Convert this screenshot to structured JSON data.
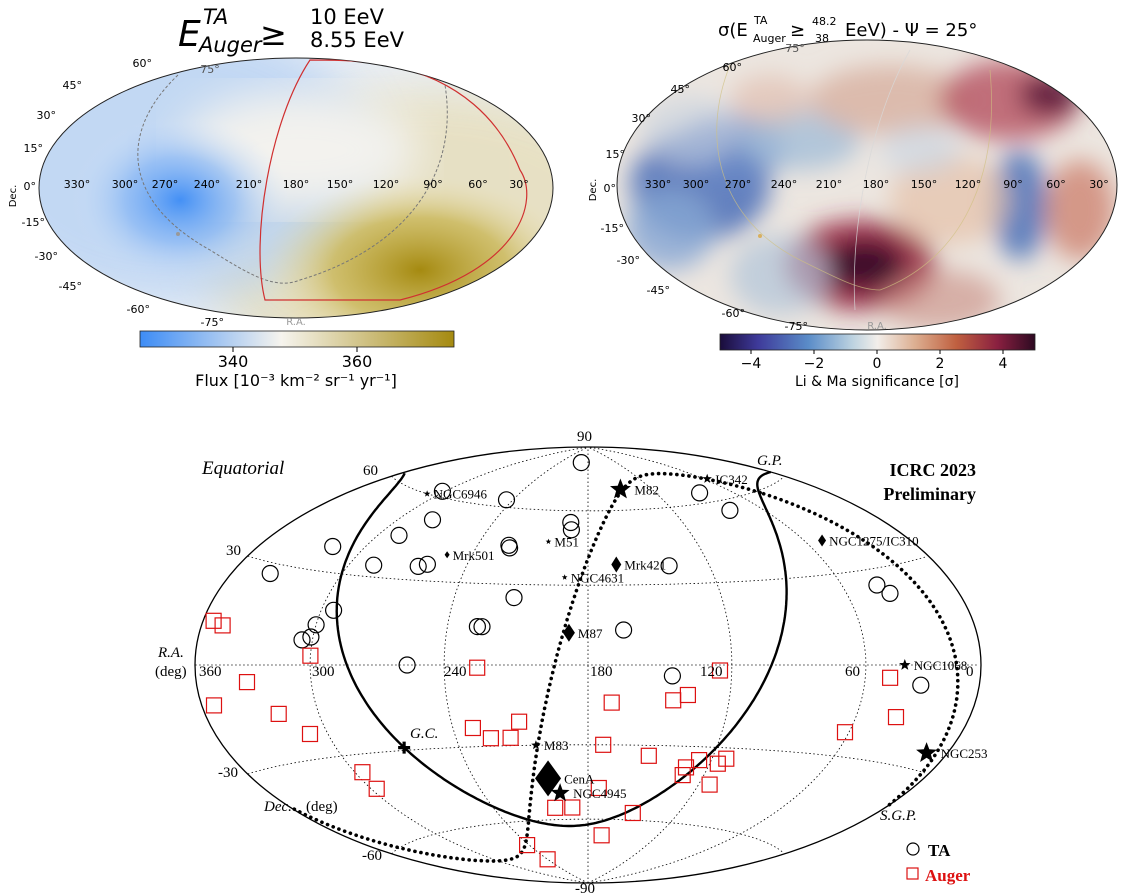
{
  "panel_top_left": {
    "title_main": "E",
    "title_sup": "TA",
    "title_sub": "Auger",
    "title_ge": "≥",
    "title_num": "10 EeV",
    "title_den": "8.55 EeV",
    "dec_axis_label": "Dec.",
    "ra_axis_label": "R.A.",
    "colorbar_label": "Flux [10⁻³ km⁻² sr⁻¹ yr⁻¹]",
    "colorbar_ticks": [
      "340",
      "360"
    ],
    "colors": {
      "low": "#3d8cf5",
      "mid": "#f6f4ee",
      "high": "#a58a10",
      "galactic_plane": "#d03030",
      "supergalactic": "#777777"
    }
  },
  "panel_top_right": {
    "title_pre": "σ(E",
    "title_sup": "TA",
    "title_sub": "Auger",
    "title_ge": "≥",
    "title_num": "48.2",
    "title_den": "38",
    "title_post": "EeV) - Ψ = 25°",
    "dec_axis_label": "Dec.",
    "ra_axis_label": "R.A.",
    "colorbar_label": "Li & Ma significance [σ]",
    "colorbar_ticks": [
      "−4",
      "−2",
      "0",
      "2",
      "4"
    ],
    "colors": {
      "neg": "#1d3a8a",
      "zero": "#f2eeea",
      "pos": "#3d0a2e"
    }
  },
  "sky_axis_labels": {
    "dec_ticks": [
      "75°",
      "60°",
      "45°",
      "30°",
      "15°",
      "0°",
      "-15°",
      "-30°",
      "-45°",
      "-60°",
      "-75°"
    ],
    "ra_ticks": [
      "330°",
      "300°",
      "270°",
      "240°",
      "210°",
      "180°",
      "150°",
      "120°",
      "90°",
      "60°",
      "30°"
    ]
  },
  "panel_bottom": {
    "label_equatorial": "Equatorial",
    "label_icrc": "ICRC 2023",
    "label_preliminary": "Preliminary",
    "label_gp": "G.P.",
    "label_sgp": "S.G.P.",
    "label_gc": "G.C.",
    "label_ra": "R.A.",
    "label_ra_unit": "(deg)",
    "label_dec": "Dec.",
    "label_dec_unit": "(deg)",
    "dec_ticks": [
      "90",
      "60",
      "30",
      "-30",
      "-60",
      "-90"
    ],
    "ra_ticks": [
      "360",
      "300",
      "240",
      "180",
      "120",
      "60",
      "0"
    ],
    "legend_ta": "TA",
    "legend_auger": "Auger",
    "colors": {
      "ta": "#000000",
      "auger": "#dd1111"
    }
  },
  "chart_data": [
    {
      "type": "heatmap",
      "projection": "mollweide-equatorial",
      "colorbar_range_approx": [
        325,
        380
      ],
      "description_values": "smooth flux dipole map"
    },
    {
      "type": "heatmap",
      "projection": "mollweide-equatorial",
      "colorbar_range": [
        -5,
        5
      ],
      "colorbar_ticks": [
        -4,
        -2,
        0,
        2,
        4
      ]
    },
    {
      "type": "scatter",
      "projection": "hammer-aitoff-equatorial",
      "series": [
        {
          "name": "TA",
          "marker": "circle",
          "points": [
            [
              195,
              82
            ],
            [
              245,
              63
            ],
            [
              302,
              62
            ],
            [
              279,
              52
            ],
            [
              191,
              55
            ],
            [
              190,
              52
            ],
            [
              223,
              45
            ],
            [
              222,
              44
            ],
            [
              288,
              45
            ],
            [
              318,
              38
            ],
            [
              264,
              35
            ],
            [
              260,
              36
            ],
            [
              287,
              34
            ],
            [
              140,
              37
            ],
            [
              82,
              56
            ],
            [
              85,
              64
            ],
            [
              338,
              27
            ],
            [
              213,
              25
            ],
            [
              294,
              18
            ],
            [
              227,
              14
            ],
            [
              225,
              14
            ],
            [
              300,
              13
            ],
            [
              301,
              9
            ],
            [
              305,
              8
            ],
            [
              165,
              13
            ],
            [
              256,
              0
            ],
            [
              42,
              25
            ],
            [
              38,
              22
            ],
            [
              32,
              -6
            ],
            [
              145,
              -4
            ]
          ]
        },
        {
          "name": "Auger",
          "marker": "square",
          "points": [
            [
              354,
              12
            ],
            [
              348,
              11
            ],
            [
              300,
              3
            ],
            [
              226,
              -1
            ],
            [
              125,
              -2
            ],
            [
              332,
              -5
            ],
            [
              320,
              -15
            ],
            [
              353,
              -11
            ],
            [
              309,
              -22
            ],
            [
              210,
              -21
            ],
            [
              170,
              -14
            ],
            [
              138,
              -11
            ],
            [
              144,
              -13
            ],
            [
              231,
              -23
            ],
            [
              224,
              -27
            ],
            [
              215,
              -27
            ],
            [
              173,
              -30
            ],
            [
              296,
              -36
            ],
            [
              297,
              -42
            ],
            [
              151,
              -34
            ],
            [
              126,
              -35
            ],
            [
              131,
              -38
            ],
            [
              131,
              -41
            ],
            [
              113,
              -34
            ],
            [
              116,
              -36
            ],
            [
              114,
              -44
            ],
            [
              174,
              -47
            ],
            [
              201,
              -55
            ],
            [
              190,
              -55
            ],
            [
              168,
              -67
            ],
            [
              242,
              -70
            ],
            [
              240,
              -77
            ],
            [
              48,
              -4
            ],
            [
              40,
              -16
            ],
            [
              62,
              -22
            ],
            [
              150,
              -57
            ]
          ]
        }
      ],
      "sources": [
        {
          "name": "M82",
          "ra": 149,
          "dec": 69
        },
        {
          "name": "IC342",
          "ra": 57,
          "dec": 68
        },
        {
          "name": "NGC6946",
          "ra": 309,
          "dec": 60
        },
        {
          "name": "Mrk501",
          "ra": 253,
          "dec": 40
        },
        {
          "name": "M51",
          "ra": 202,
          "dec": 47
        },
        {
          "name": "Mrk421",
          "ra": 166,
          "dec": 38
        },
        {
          "name": "NGC4631",
          "ra": 191,
          "dec": 33
        },
        {
          "name": "NGC1275/IC310",
          "ra": 50,
          "dec": 41
        },
        {
          "name": "M87",
          "ra": 188,
          "dec": 12
        },
        {
          "name": "NGC1068",
          "ra": 41,
          "dec": 0
        },
        {
          "name": "M83",
          "ra": 204,
          "dec": -30
        },
        {
          "name": "CenA",
          "ra": 201,
          "dec": -43
        },
        {
          "name": "NGC4945",
          "ra": 196,
          "dec": -49
        },
        {
          "name": "NGC253",
          "ra": 12,
          "dec": -25
        }
      ]
    }
  ]
}
